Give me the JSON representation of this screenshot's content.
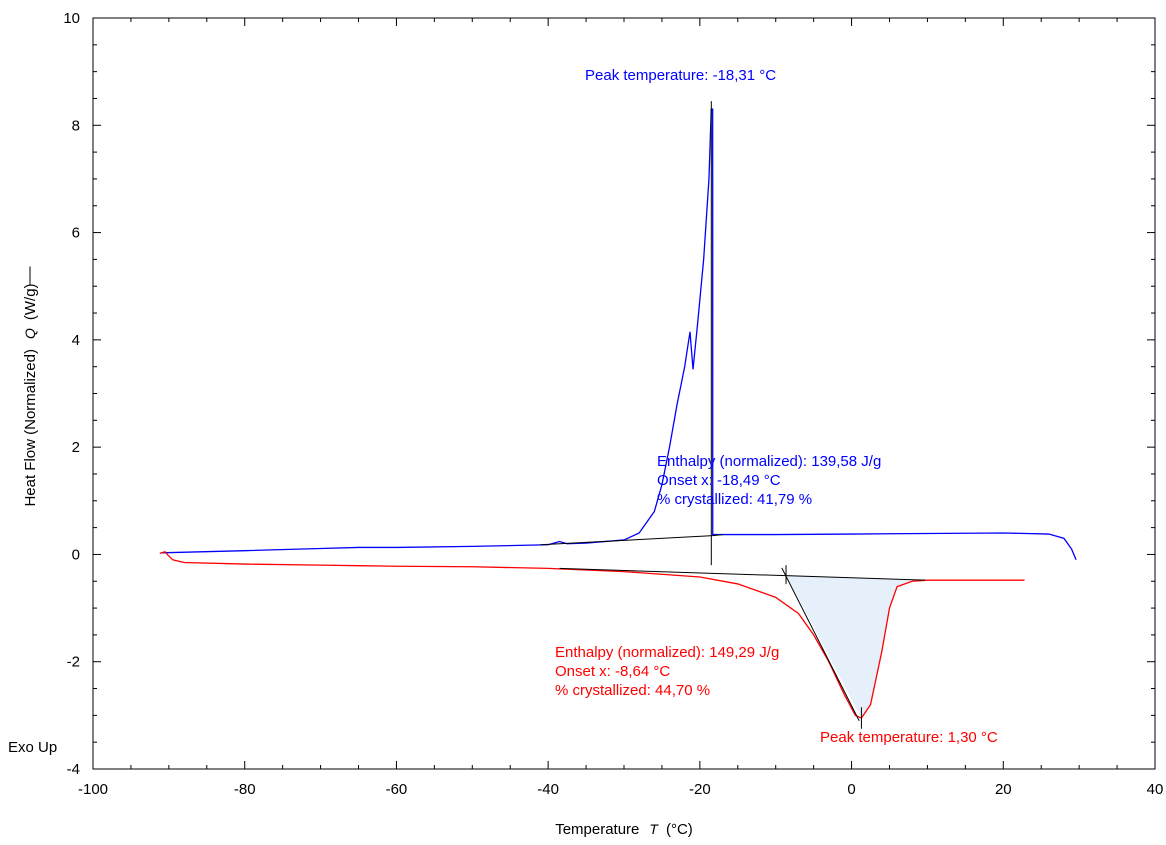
{
  "chart_data": {
    "type": "line",
    "xlabel": [
      "Temperature",
      "T",
      "(°C)"
    ],
    "ylabel": [
      "Heat Flow (Normalized)",
      "Q",
      "(W/g)"
    ],
    "corner_note": "Exo Up",
    "xlim": [
      -100,
      40
    ],
    "ylim": [
      -4,
      10
    ],
    "xticks": [
      -100,
      -80,
      -60,
      -40,
      -20,
      0,
      20,
      40
    ],
    "yticks": [
      -4,
      -2,
      0,
      2,
      4,
      6,
      8,
      10
    ],
    "xticks_minor": [
      -95,
      -90,
      -85,
      -75,
      -70,
      -65,
      -55,
      -50,
      -45,
      -35,
      -30,
      -25,
      -15,
      -10,
      -5,
      5,
      10,
      15,
      25,
      30,
      35
    ],
    "yticks_minor": [
      -3.5,
      -3,
      -2.5,
      -1.5,
      -1,
      -0.5,
      0.5,
      1,
      1.5,
      2.5,
      3,
      3.5,
      4.5,
      5,
      5.5,
      6.5,
      7,
      7.5,
      8.5,
      9,
      9.5
    ],
    "series": [
      {
        "color": "#0000ff",
        "x": [
          -91,
          -80,
          -70,
          -65,
          -60,
          -50,
          -40,
          -38.5,
          -37.5,
          -35,
          -30,
          -28,
          -26,
          -25,
          -24,
          -23,
          -22,
          -21.3,
          -20.9,
          -20.3,
          -19.5,
          -18.8,
          -18.5,
          -18.31,
          -18.3,
          -17,
          -10,
          0,
          10,
          20,
          26,
          28,
          29,
          29.6
        ],
        "values": [
          0.03,
          0.07,
          0.11,
          0.13,
          0.13,
          0.15,
          0.18,
          0.24,
          0.2,
          0.21,
          0.27,
          0.4,
          0.8,
          1.3,
          2.0,
          2.8,
          3.5,
          4.15,
          3.45,
          4.3,
          5.5,
          7.0,
          8.3,
          8.3,
          0.37,
          0.37,
          0.37,
          0.38,
          0.39,
          0.4,
          0.38,
          0.3,
          0.1,
          -0.1
        ]
      },
      {
        "color": "#ff0000",
        "x": [
          -91.2,
          -90.5,
          -90.2,
          -89.5,
          -88,
          -80,
          -70,
          -65,
          -60,
          -50,
          -40,
          -30,
          -20,
          -15,
          -10,
          -7,
          -5,
          -3,
          -1,
          0.5,
          1.3,
          2.5,
          4,
          5,
          6,
          8,
          10,
          22.8
        ],
        "values": [
          0.02,
          0.05,
          0.0,
          -0.1,
          -0.15,
          -0.18,
          -0.2,
          -0.21,
          -0.22,
          -0.23,
          -0.26,
          -0.32,
          -0.42,
          -0.55,
          -0.8,
          -1.1,
          -1.5,
          -2.0,
          -2.6,
          -3.0,
          -3.05,
          -2.8,
          -1.8,
          -1.0,
          -0.6,
          -0.5,
          -0.48,
          -0.48
        ]
      }
    ],
    "shaded_area": {
      "color": "#e6f0fa",
      "x": [
        -8.64,
        1.3,
        2.5,
        4,
        5,
        6,
        8,
        9.7
      ],
      "values": [
        -0.38,
        -3.05,
        -2.8,
        -1.8,
        -1.0,
        -0.6,
        -0.5,
        -0.48
      ]
    },
    "construction_lines": [
      {
        "x": [
          -41,
          -18.3
        ],
        "values": [
          0.18,
          0.35
        ]
      },
      {
        "x": [
          -18.49,
          -18.49
        ],
        "values": [
          -0.2,
          8.45
        ]
      },
      {
        "x": [
          -18.3,
          -17
        ],
        "values": [
          0.35,
          0.37
        ]
      },
      {
        "x": [
          -38.5,
          9.7
        ],
        "values": [
          -0.26,
          -0.48
        ]
      },
      {
        "x": [
          -9.2,
          1.0
        ],
        "values": [
          -0.25,
          -3.1
        ]
      },
      {
        "x": [
          -8.64,
          -8.64
        ],
        "values": [
          -0.2,
          -0.55
        ]
      },
      {
        "x": [
          1.3,
          1.3
        ],
        "values": [
          -2.85,
          -3.25
        ]
      }
    ],
    "annotations": [
      {
        "color": "#0000ff",
        "lines": [
          "Peak temperature: -18,31 °C"
        ]
      },
      {
        "color": "#0000ff",
        "lines": [
          "Enthalpy (normalized): 139,58 J/g",
          "Onset x: -18,49 °C",
          "% crystallized: 41,79 %"
        ]
      },
      {
        "color": "#ff0000",
        "lines": [
          "Enthalpy (normalized): 149,29 J/g",
          "Onset x: -8,64 °C",
          "% crystallized: 44,70 %"
        ]
      },
      {
        "color": "#ff0000",
        "lines": [
          "Peak temperature: 1,30 °C"
        ]
      }
    ]
  }
}
